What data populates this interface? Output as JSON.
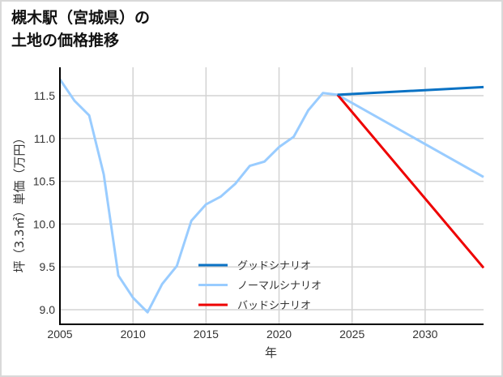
{
  "title": {
    "line1": "槻木駅（宮城県）の",
    "line2": "土地の価格推移"
  },
  "colors": {
    "good": "#0a72c4",
    "normal": "#99ccff",
    "bad": "#ee0000",
    "grid": "#d3d3d3",
    "axis": "#000000"
  },
  "chart_data": {
    "type": "line",
    "title": "槻木駅（宮城県）の土地の価格推移",
    "xlabel": "年",
    "ylabel": "坪（3.3㎡）単価（万円）",
    "xlim": [
      2005,
      2034
    ],
    "ylim": [
      8.83,
      11.83
    ],
    "grid": true,
    "legend_position": "lower center",
    "x_ticks": [
      2005,
      2010,
      2015,
      2020,
      2025,
      2030
    ],
    "x_tick_labels": [
      "2005",
      "2010",
      "2015",
      "2020",
      "2025",
      "2030"
    ],
    "y_ticks": [
      9.0,
      9.5,
      10.0,
      10.5,
      11.0,
      11.5
    ],
    "y_tick_labels": [
      "9.0",
      "9.5",
      "10.0",
      "10.5",
      "11.0",
      "11.5"
    ],
    "series": [
      {
        "name": "グッドシナリオ",
        "key": "good",
        "x": [
          2024,
          2034
        ],
        "values": [
          11.51,
          11.6
        ]
      },
      {
        "name": "ノーマルシナリオ",
        "key": "normal",
        "x": [
          2005,
          2006,
          2007,
          2008,
          2009,
          2010,
          2011,
          2012,
          2013,
          2014,
          2015,
          2016,
          2017,
          2018,
          2019,
          2020,
          2021,
          2022,
          2023,
          2024,
          2034
        ],
        "values": [
          11.69,
          11.44,
          11.27,
          10.58,
          9.4,
          9.14,
          8.97,
          9.3,
          9.51,
          10.04,
          10.23,
          10.32,
          10.47,
          10.68,
          10.73,
          10.9,
          11.02,
          11.33,
          11.53,
          11.51,
          10.55
        ]
      },
      {
        "name": "バッドシナリオ",
        "key": "bad",
        "x": [
          2024,
          2034
        ],
        "values": [
          11.51,
          9.49
        ]
      }
    ]
  }
}
